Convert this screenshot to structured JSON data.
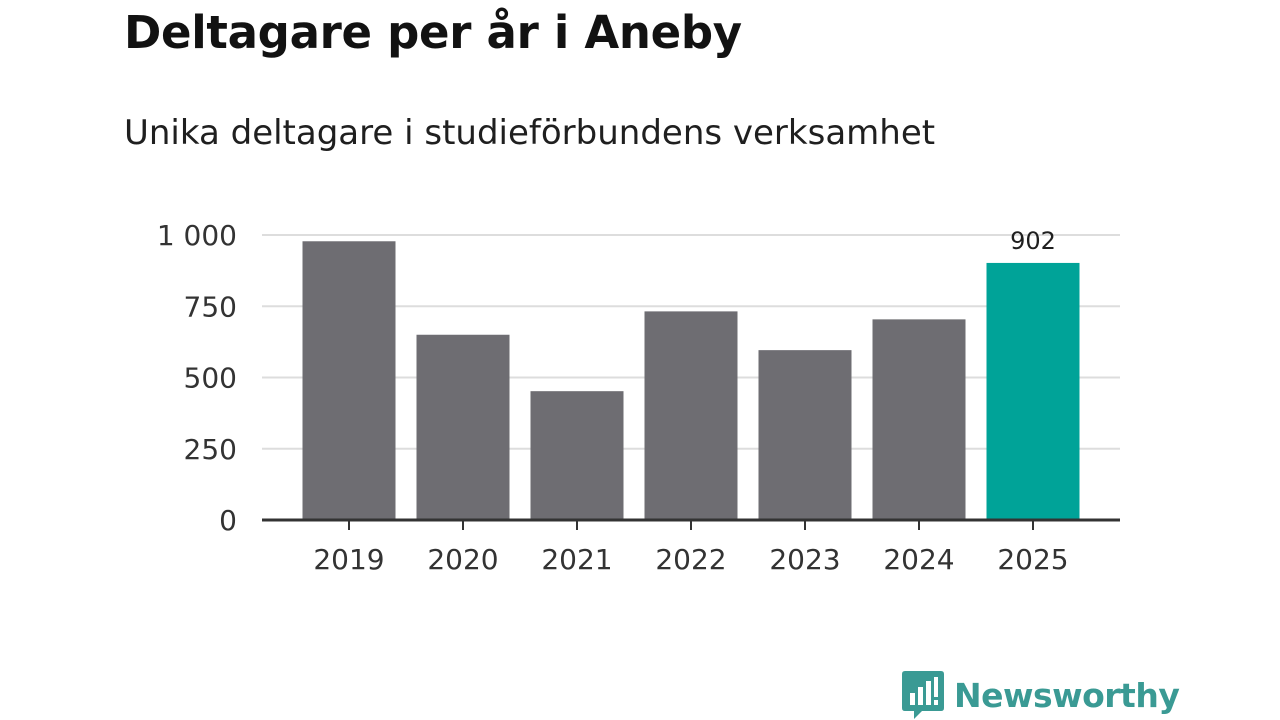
{
  "header": {
    "title": "Deltagare per år i Aneby",
    "subtitle": "Unika deltagare i studieförbundens verksamhet"
  },
  "brand": {
    "name": "Newsworthy",
    "icon": "bar-chart-speech-bubble-icon",
    "color": "#3a9a94"
  },
  "chart_data": {
    "type": "bar",
    "title": "Deltagare per år i Aneby",
    "subtitle": "Unika deltagare i studieförbundens verksamhet",
    "xlabel": "",
    "ylabel": "",
    "categories": [
      "2019",
      "2020",
      "2021",
      "2022",
      "2023",
      "2024",
      "2025"
    ],
    "values": [
      978,
      650,
      452,
      732,
      596,
      704,
      902
    ],
    "ylim": [
      0,
      1000
    ],
    "yticks": [
      0,
      250,
      500,
      750,
      1000
    ],
    "ytick_labels": [
      "0",
      "250",
      "500",
      "750",
      "1 000"
    ],
    "grid": true,
    "colors": {
      "default": "#6e6d72",
      "highlight": "#00a398",
      "grid": "#dddddd",
      "axis": "#333333"
    },
    "highlight_index": 6,
    "data_labels": [
      {
        "index": 6,
        "text": "902"
      }
    ]
  }
}
